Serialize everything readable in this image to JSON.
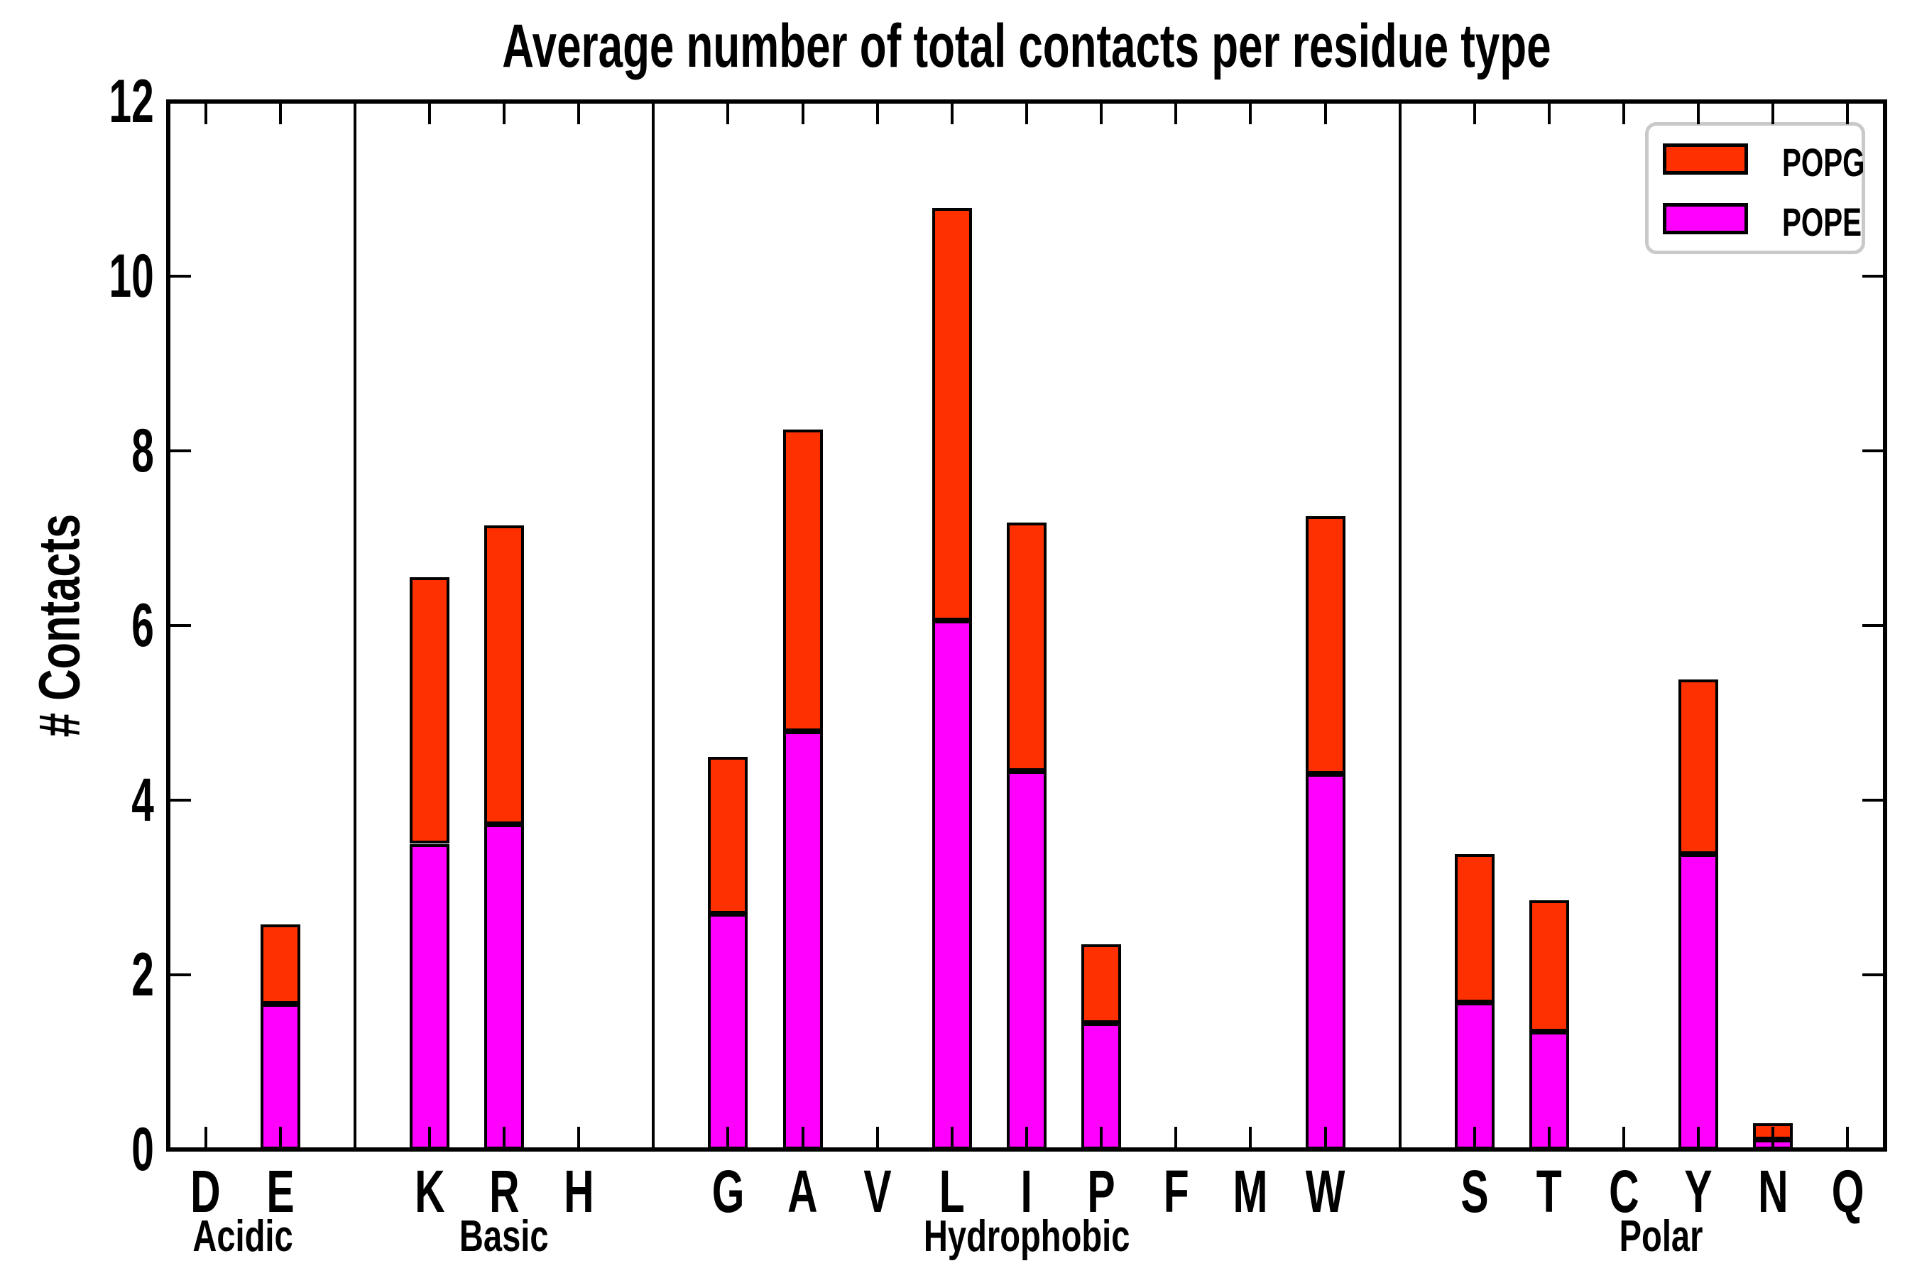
{
  "chart_data": {
    "type": "bar",
    "stacked": true,
    "title": "Average number of total contacts per residue type",
    "ylabel": "# Contacts",
    "ylim": [
      0,
      12
    ],
    "yticks": [
      0,
      2,
      4,
      6,
      8,
      10,
      12
    ],
    "grid": false,
    "legend": {
      "position": "top-right",
      "entries": [
        {
          "label": "POPG",
          "color": "#ff3000"
        },
        {
          "label": "POPE",
          "color": "#ff00ff"
        }
      ]
    },
    "groups": [
      {
        "label": "Acidic",
        "residues": [
          "D",
          "E"
        ]
      },
      {
        "label": "Basic",
        "residues": [
          "K",
          "R",
          "H"
        ]
      },
      {
        "label": "Hydrophobic",
        "residues": [
          "G",
          "A",
          "V",
          "L",
          "I",
          "P",
          "F",
          "M",
          "W"
        ]
      },
      {
        "label": "Polar",
        "residues": [
          "S",
          "T",
          "C",
          "Y",
          "N",
          "Q"
        ]
      }
    ],
    "categories": [
      "D",
      "E",
      "K",
      "R",
      "H",
      "G",
      "A",
      "V",
      "L",
      "I",
      "P",
      "F",
      "M",
      "W",
      "S",
      "T",
      "C",
      "Y",
      "N",
      "Q"
    ],
    "series": [
      {
        "name": "POPE",
        "color": "#ff00ff",
        "values": [
          0,
          1.67,
          3.5,
          3.72,
          0,
          2.7,
          4.79,
          0,
          6.06,
          4.33,
          1.45,
          0,
          0,
          4.3,
          1.68,
          1.35,
          0,
          3.38,
          0.11,
          0
        ]
      },
      {
        "name": "POPG",
        "color": "#ff3000",
        "values": [
          0,
          0.91,
          3.05,
          3.43,
          0,
          1.8,
          3.45,
          0,
          4.72,
          2.85,
          0.9,
          0,
          0,
          2.95,
          1.7,
          1.5,
          0,
          2.0,
          0.19,
          0
        ]
      }
    ],
    "totals": [
      0,
      2.58,
      6.55,
      7.15,
      0,
      4.5,
      8.24,
      0,
      10.78,
      7.18,
      2.35,
      0,
      0,
      7.25,
      3.38,
      2.85,
      0,
      5.38,
      0.3,
      0
    ]
  },
  "colors": {
    "axis": "#000000",
    "background": "#ffffff",
    "legend_border": "#c9c9c9",
    "popg": "#ff3000",
    "pope": "#ff00ff"
  }
}
